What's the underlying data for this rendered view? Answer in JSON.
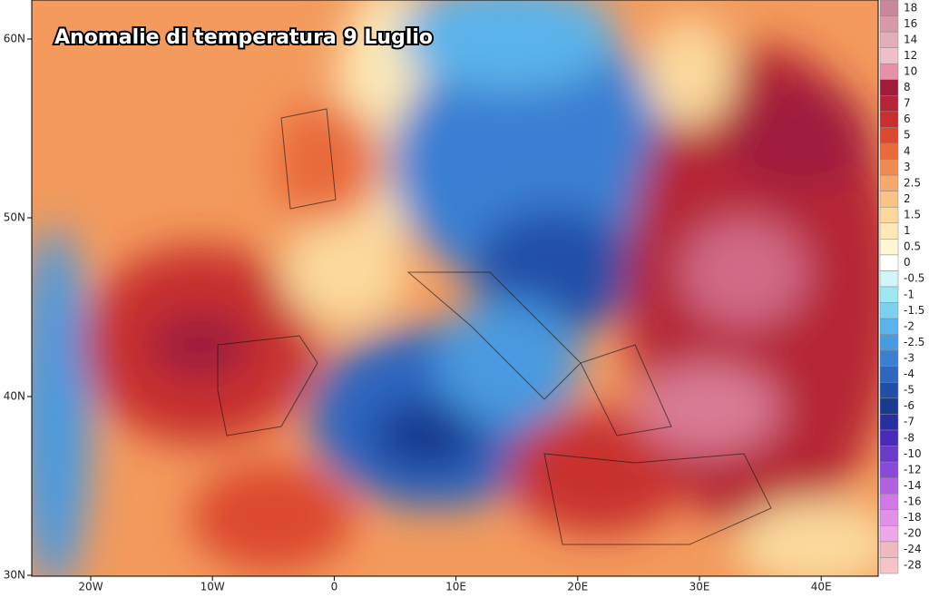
{
  "map": {
    "title": "Anomalie di temperatura 9 Luglio",
    "lat_labels": [
      "60N",
      "50N",
      "40N",
      "30N"
    ],
    "lon_labels": [
      "20W",
      "10W",
      "0",
      "10E",
      "20E",
      "30E",
      "40E"
    ],
    "legend": [
      {
        "label": "18",
        "color": "#c8879a"
      },
      {
        "label": "16",
        "color": "#d69aa9"
      },
      {
        "label": "14",
        "color": "#e3aeb8"
      },
      {
        "label": "12",
        "color": "#efbfca"
      },
      {
        "label": "10",
        "color": "#e591a6"
      },
      {
        "label": "8",
        "color": "#a01c3c"
      },
      {
        "label": "7",
        "color": "#b52535"
      },
      {
        "label": "6",
        "color": "#c8302e"
      },
      {
        "label": "5",
        "color": "#dc4a2e"
      },
      {
        "label": "4",
        "color": "#e96a3a"
      },
      {
        "label": "3",
        "color": "#f08c52"
      },
      {
        "label": "2.5",
        "color": "#f5a96a"
      },
      {
        "label": "2",
        "color": "#f8c383"
      },
      {
        "label": "1.5",
        "color": "#fbd99c"
      },
      {
        "label": "1",
        "color": "#fde9b5"
      },
      {
        "label": "0.5",
        "color": "#fff6d5"
      },
      {
        "label": "0",
        "color": "#ffffff"
      },
      {
        "label": "-0.5",
        "color": "#d2f5f8"
      },
      {
        "label": "-1",
        "color": "#9ee8f0"
      },
      {
        "label": "-1.5",
        "color": "#7fcff0"
      },
      {
        "label": "-2",
        "color": "#5ab3ea"
      },
      {
        "label": "-2.5",
        "color": "#4a9ae0"
      },
      {
        "label": "-3",
        "color": "#3b7fd2"
      },
      {
        "label": "-4",
        "color": "#2e66c0"
      },
      {
        "label": "-5",
        "color": "#214fa8"
      },
      {
        "label": "-6",
        "color": "#183b90"
      },
      {
        "label": "-7",
        "color": "#2a2fa0"
      },
      {
        "label": "-8",
        "color": "#4a2ab8"
      },
      {
        "label": "-10",
        "color": "#6a3ac8"
      },
      {
        "label": "-12",
        "color": "#8a4ad8"
      },
      {
        "label": "-14",
        "color": "#b060e0"
      },
      {
        "label": "-16",
        "color": "#d078e8"
      },
      {
        "label": "-18",
        "color": "#e090e8"
      },
      {
        "label": "-20",
        "color": "#eea8e8"
      },
      {
        "label": "-24",
        "color": "#f0b8c0"
      },
      {
        "label": "-28",
        "color": "#f4c4c8"
      }
    ]
  }
}
